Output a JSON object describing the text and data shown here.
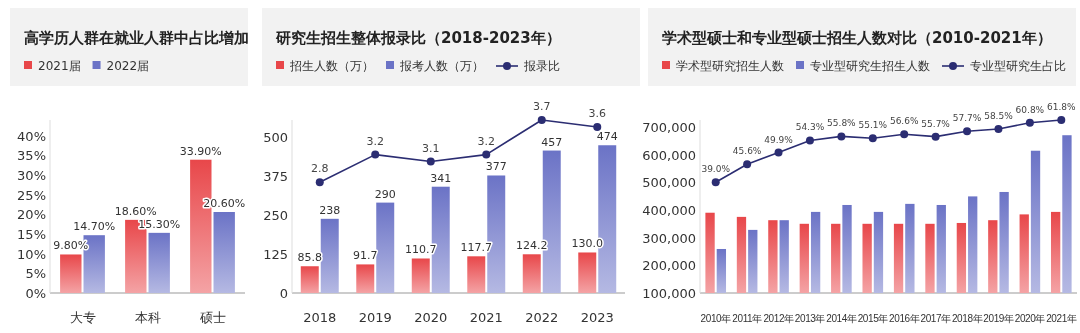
{
  "chart_data": [
    {
      "type": "bar",
      "title": "高学历人群在就业人群中占比增加",
      "categories": [
        "大专",
        "本科",
        "硕士"
      ],
      "ylim": [
        0,
        44
      ],
      "yticks": [
        {
          "value": 0,
          "label": "0%"
        },
        {
          "value": 5,
          "label": "5%"
        },
        {
          "value": 10,
          "label": "10%"
        },
        {
          "value": 15,
          "label": "15%"
        },
        {
          "value": 20,
          "label": "20%"
        },
        {
          "value": 25,
          "label": "25%"
        },
        {
          "value": 30,
          "label": "30%"
        },
        {
          "value": 35,
          "label": "35%"
        },
        {
          "value": 40,
          "label": "40%"
        }
      ],
      "legend": "top left",
      "grid": false,
      "series": [
        {
          "name": "2021届",
          "color": "#e8474a",
          "values": [
            9.8,
            18.6,
            33.9
          ],
          "value_labels": [
            "9.80%",
            "18.60%",
            "33.90%"
          ]
        },
        {
          "name": "2022届",
          "color": "#6b73c6",
          "values": [
            14.7,
            15.3,
            20.6
          ],
          "value_labels": [
            "14.70%",
            "15.30%",
            "20.60%"
          ]
        }
      ]
    },
    {
      "type": "bar",
      "title": "研究生招生整体报录比（2018-2023年）",
      "categories": [
        "2018",
        "2019",
        "2020",
        "2021",
        "2022",
        "2023"
      ],
      "ylim": [
        0,
        555
      ],
      "yticks": [
        0,
        125,
        250,
        375,
        500
      ],
      "legend": "top left",
      "grid": false,
      "marker": "circle",
      "series": [
        {
          "name": "招生人数（万）",
          "color": "#e8474a",
          "values": [
            85.8,
            91.7,
            110.7,
            117.7,
            124.2,
            130.0
          ],
          "value_labels": [
            "85.8",
            "91.7",
            "110.7",
            "117.7",
            "124.2",
            "130.0"
          ]
        },
        {
          "name": "报考人数（万）",
          "color": "#6b73c6",
          "values": [
            238,
            290,
            341,
            377,
            457,
            474
          ],
          "value_labels": [
            "238",
            "290",
            "341",
            "377",
            "457",
            "474"
          ]
        },
        {
          "name": "报录比",
          "type": "line",
          "axis": "y2",
          "color": "#2b2d72",
          "values": [
            2.8,
            3.2,
            3.1,
            3.2,
            3.7,
            3.6
          ],
          "value_labels": [
            "2.8",
            "3.2",
            "3.1",
            "3.2",
            "3.7",
            "3.6"
          ]
        }
      ]
    },
    {
      "type": "bar",
      "title": "学术型硕士和专业型硕士招生人数对比（2010-2021年）",
      "categories": [
        "2010年",
        "2011年",
        "2012年",
        "2013年",
        "2014年",
        "2015年",
        "2016年",
        "2017年",
        "2018年",
        "2019年",
        "2020年",
        "2021年"
      ],
      "ylim": [
        100000,
        725000
      ],
      "yticks": [
        {
          "value": 100000,
          "label": "100,000"
        },
        {
          "value": 200000,
          "label": "200,000"
        },
        {
          "value": 300000,
          "label": "300,000"
        },
        {
          "value": 400000,
          "label": "400,000"
        },
        {
          "value": 500000,
          "label": "500,000"
        },
        {
          "value": 600000,
          "label": "600,000"
        },
        {
          "value": 700000,
          "label": "700,000"
        }
      ],
      "legend": "top left",
      "grid": false,
      "marker": "circle",
      "series": [
        {
          "name": "学术型研究招生人数",
          "color": "#e8474a",
          "values": [
            390000,
            375000,
            363000,
            350000,
            350000,
            350000,
            350000,
            350000,
            353000,
            363000,
            384000,
            393000
          ]
        },
        {
          "name": "专业型研究生招生人数",
          "color": "#6b73c6",
          "values": [
            259000,
            328000,
            363000,
            393000,
            418000,
            393000,
            422000,
            418000,
            449000,
            465000,
            614000,
            670000
          ]
        },
        {
          "name": "专业型研究生占比",
          "type": "line",
          "axis": "y2",
          "color": "#2b2d72",
          "values": [
            39.0,
            45.6,
            49.9,
            54.3,
            55.8,
            55.1,
            56.6,
            55.7,
            57.7,
            58.5,
            60.8,
            61.8
          ],
          "value_labels": [
            "39.0%",
            "45.6%",
            "49.9%",
            "54.3%",
            "55.8%",
            "55.1%",
            "56.6%",
            "55.7%",
            "57.7%",
            "58.5%",
            "60.8%",
            "61.8%"
          ]
        }
      ]
    }
  ]
}
